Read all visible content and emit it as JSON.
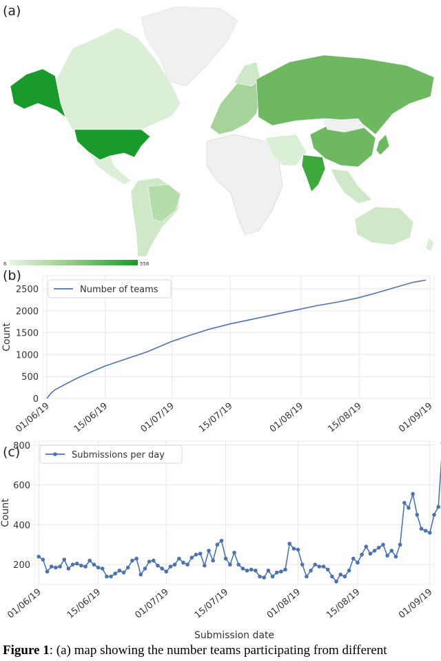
{
  "panels": {
    "a": "(a)",
    "b": "(b)",
    "c": "(c)"
  },
  "map": {
    "colorbar_min": "6",
    "colorbar_max": "558",
    "colors": {
      "low": "#dbefd6",
      "mid": "#a6d39a",
      "high": "#6fb862",
      "max": "#1a9a2a",
      "none": "#f0f0f0"
    }
  },
  "chart_data": [
    {
      "type": "line",
      "panel": "(b)",
      "xlabel": "Submission date",
      "ylabel": "Count",
      "ylim": [
        0,
        2800
      ],
      "yticks": [
        0,
        500,
        1000,
        1500,
        2000,
        2500
      ],
      "xticks": [
        "01/06/19",
        "15/06/19",
        "01/07/19",
        "15/07/19",
        "01/08/19",
        "15/08/19",
        "01/09/19"
      ],
      "xlim": [
        "31/05/19",
        "02/09/19"
      ],
      "grid": true,
      "legend_position": "top-left",
      "color": "#4c72b0",
      "series": [
        {
          "name": "Number of teams",
          "x": [
            "01/06/19",
            "02/06/19",
            "03/06/19",
            "05/06/19",
            "08/06/19",
            "12/06/19",
            "15/06/19",
            "20/06/19",
            "25/06/19",
            "01/07/19",
            "05/07/19",
            "10/07/19",
            "15/07/19",
            "20/07/19",
            "25/07/19",
            "01/08/19",
            "05/08/19",
            "10/08/19",
            "15/08/19",
            "20/08/19",
            "25/08/19",
            "28/08/19",
            "31/08/19"
          ],
          "values": [
            0,
            120,
            200,
            300,
            450,
            620,
            740,
            900,
            1060,
            1300,
            1430,
            1580,
            1700,
            1800,
            1900,
            2040,
            2120,
            2200,
            2300,
            2430,
            2570,
            2650,
            2700
          ]
        }
      ]
    },
    {
      "type": "line",
      "panel": "(c)",
      "xlabel": "Submission date",
      "ylabel": "Count",
      "ylim": [
        100,
        820
      ],
      "yticks": [
        200,
        400,
        600,
        800
      ],
      "xticks": [
        "01/06/19",
        "15/06/19",
        "01/07/19",
        "15/07/19",
        "01/08/19",
        "15/08/19",
        "01/09/19"
      ],
      "xlim": [
        "31/05/19",
        "02/09/19"
      ],
      "grid": true,
      "legend_position": "top-left",
      "color": "#4c72b0",
      "series": [
        {
          "name": "Submissions per day",
          "start_date": "01/06/19",
          "values": [
            240,
            225,
            165,
            190,
            185,
            190,
            225,
            180,
            200,
            205,
            195,
            190,
            220,
            200,
            185,
            180,
            140,
            140,
            155,
            170,
            160,
            185,
            220,
            230,
            150,
            180,
            215,
            220,
            195,
            180,
            165,
            190,
            200,
            230,
            210,
            200,
            235,
            250,
            255,
            195,
            270,
            220,
            300,
            320,
            230,
            200,
            260,
            200,
            180,
            170,
            175,
            170,
            140,
            135,
            170,
            140,
            160,
            165,
            175,
            305,
            280,
            275,
            200,
            140,
            170,
            200,
            190,
            190,
            175,
            140,
            115,
            150,
            140,
            170,
            230,
            210,
            250,
            290,
            255,
            270,
            285,
            300,
            245,
            270,
            240,
            300,
            510,
            485,
            555,
            450,
            380,
            370,
            360,
            450,
            490,
            810
          ]
        }
      ]
    }
  ],
  "caption": {
    "bold": "Figure 1",
    "text": ": (a) map showing the number teams participating from different"
  }
}
